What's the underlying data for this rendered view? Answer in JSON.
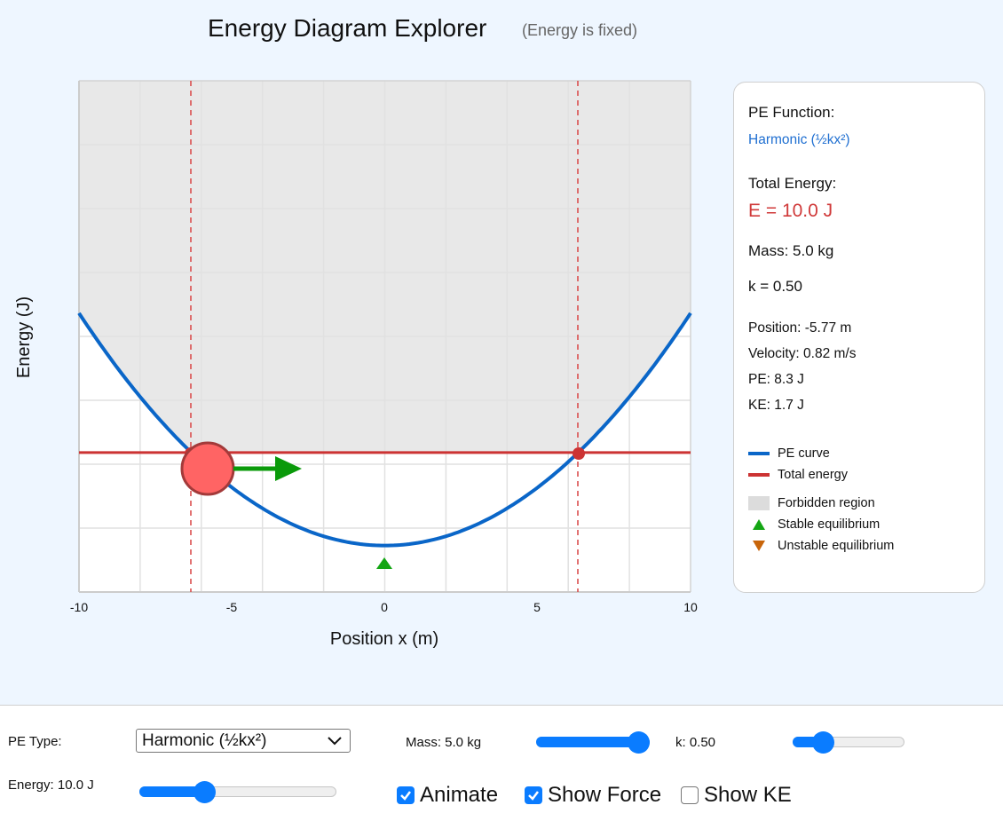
{
  "header": {
    "title": "Energy Diagram Explorer",
    "subtitle": "(Energy is fixed)"
  },
  "chart_data": {
    "type": "line",
    "title": "Energy Diagram Explorer",
    "xlabel": "Position x (m)",
    "ylabel": "Energy (J)",
    "xlim": [
      -10,
      10
    ],
    "ylim": [
      -5,
      50
    ],
    "x_ticks": [
      "-10",
      "-5",
      "0",
      "5",
      "10"
    ],
    "grid": true,
    "series": [
      {
        "name": "PE curve",
        "function": "0.5*k*x^2",
        "k": 0.5,
        "color": "#0a66c8",
        "x": [
          -10,
          -8,
          -6,
          -4,
          -2,
          0,
          2,
          4,
          6,
          8,
          10
        ],
        "values": [
          25,
          16,
          9,
          4,
          1,
          0,
          1,
          4,
          9,
          16,
          25
        ]
      },
      {
        "name": "Total energy",
        "color": "#cc3333",
        "values": [
          10,
          10
        ]
      }
    ],
    "turning_points": [
      -6.32,
      6.32
    ],
    "forbidden_region_color": "#e8e8e8",
    "stable_equilibrium": [
      {
        "x": 0,
        "y": 0
      }
    ],
    "particle": {
      "x": -5.77,
      "pe": 8.3,
      "color": "#ff6464"
    },
    "force_arrow": {
      "direction": "right",
      "color": "#0a9a0a"
    }
  },
  "axis": {
    "xlabel": "Position x (m)",
    "ylabel": "Energy (J)",
    "ticks": [
      "-10",
      "-5",
      "0",
      "5",
      "10"
    ]
  },
  "info": {
    "pe_function_label": "PE Function:",
    "pe_function_value": "Harmonic (½kx²)",
    "total_energy_label": "Total Energy:",
    "total_energy_value": "E = 10.0 J",
    "mass": "Mass: 5.0 kg",
    "k": "k = 0.50",
    "position": "Position: -5.77 m",
    "velocity": "Velocity: 0.82 m/s",
    "pe": "PE: 8.3 J",
    "ke": "KE: 1.7 J"
  },
  "legend": [
    {
      "label": "PE curve",
      "color": "#0a66c8"
    },
    {
      "label": "Total energy",
      "color": "#cc3333"
    },
    {
      "label": "Forbidden region",
      "color": "#dcdcdc"
    },
    {
      "label": "Stable equilibrium",
      "color": "#14a614"
    },
    {
      "label": "Unstable equilibrium",
      "color": "#c8650a"
    }
  ],
  "controls": {
    "pe_type_label": "PE Type:",
    "pe_type_value": "Harmonic (½kx²)",
    "mass_label": "Mass: 5.0 kg",
    "mass_slider_pct": 100,
    "k_label": "k: 0.50",
    "k_slider_pct": 27,
    "energy_label": "Energy: 10.0 J",
    "energy_slider_pct": 33,
    "animate_label": "Animate",
    "animate_checked": true,
    "show_force_label": "Show Force",
    "show_force_checked": true,
    "show_ke_label": "Show KE",
    "show_ke_checked": false
  }
}
